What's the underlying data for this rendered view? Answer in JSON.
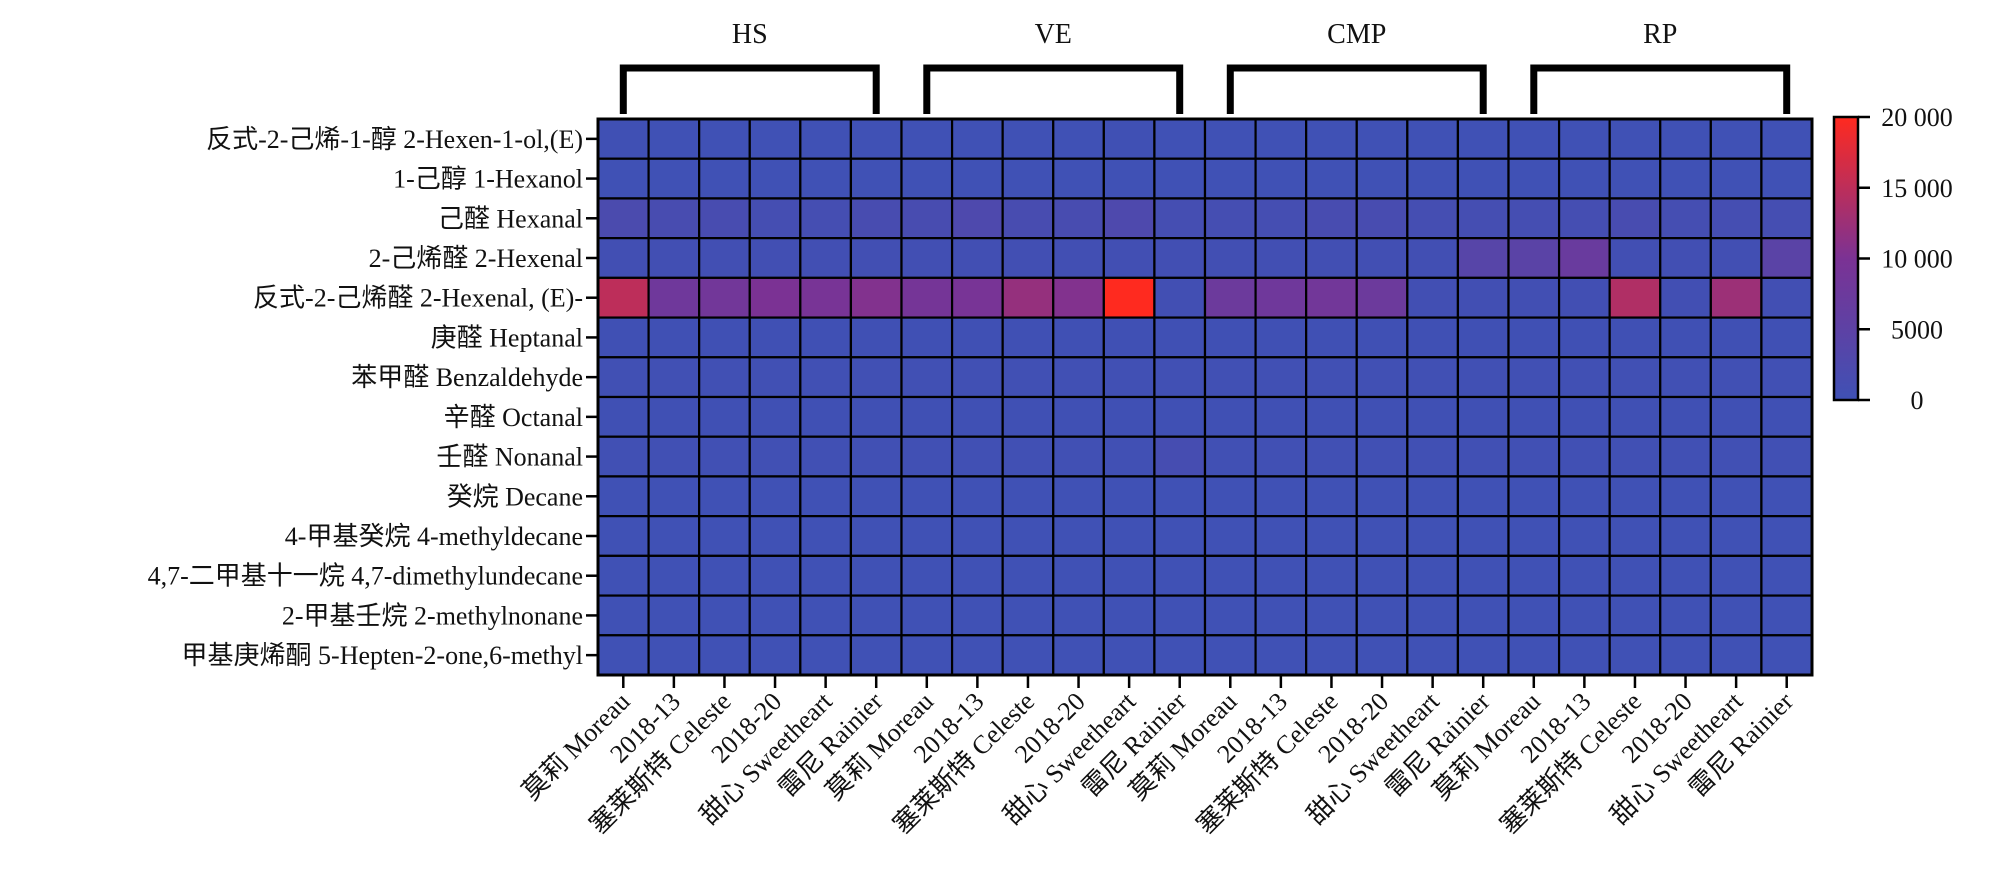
{
  "chart_data": {
    "type": "heatmap",
    "groups": [
      {
        "label": "HS",
        "start": 0,
        "end": 5
      },
      {
        "label": "VE",
        "start": 6,
        "end": 11
      },
      {
        "label": "CMP",
        "start": 12,
        "end": 17
      },
      {
        "label": "RP",
        "start": 18,
        "end": 23
      }
    ],
    "columns": [
      "莫莉 Moreau",
      "2018-13",
      "塞莱斯特 Celeste",
      "2018-20",
      "甜心 Sweetheart",
      "雷尼 Rainier",
      "莫莉 Moreau",
      "2018-13",
      "塞莱斯特 Celeste",
      "2018-20",
      "甜心 Sweetheart",
      "雷尼 Rainier",
      "莫莉 Moreau",
      "2018-13",
      "塞莱斯特 Celeste",
      "2018-20",
      "甜心 Sweetheart",
      "雷尼 Rainier",
      "莫莉 Moreau",
      "2018-13",
      "塞莱斯特 Celeste",
      "2018-20",
      "甜心 Sweetheart",
      "雷尼 Rainier"
    ],
    "rows": [
      "反式-2-己烯-1-醇 2-Hexen-1-ol,(E)",
      "1-己醇 1-Hexanol",
      "己醛 Hexanal",
      "2-己烯醛 2-Hexenal",
      "反式-2-己烯醛 2-Hexenal, (E)-",
      "庚醛 Heptanal",
      "苯甲醛 Benzaldehyde",
      "辛醛 Octanal",
      "壬醛 Nonanal",
      "癸烷 Decane",
      "4-甲基癸烷 4-methyldecane",
      "4,7-二甲基十一烷 4,7-dimethylundecane",
      "2-甲基壬烷 2-methylnonane",
      "甲基庚烯酮 5-Hepten-2-one,6-methyl"
    ],
    "values": [
      [
        200,
        150,
        100,
        150,
        100,
        100,
        100,
        100,
        150,
        150,
        200,
        100,
        100,
        100,
        100,
        100,
        100,
        100,
        100,
        100,
        100,
        100,
        100,
        100
      ],
      [
        100,
        100,
        100,
        100,
        100,
        100,
        100,
        100,
        100,
        100,
        100,
        100,
        100,
        100,
        100,
        100,
        100,
        100,
        100,
        100,
        100,
        100,
        100,
        100
      ],
      [
        2000,
        1500,
        1500,
        1000,
        1000,
        1500,
        1500,
        2500,
        1500,
        1500,
        2500,
        1000,
        1000,
        1000,
        1500,
        1500,
        1000,
        1000,
        1000,
        1000,
        1500,
        1000,
        1000,
        1000
      ],
      [
        500,
        500,
        500,
        500,
        500,
        500,
        500,
        500,
        500,
        500,
        500,
        500,
        500,
        500,
        500,
        500,
        500,
        4000,
        4500,
        7000,
        500,
        500,
        500,
        4500
      ],
      [
        15000,
        8000,
        8500,
        10000,
        9500,
        10500,
        9000,
        9500,
        12000,
        10500,
        20000,
        500,
        7500,
        8000,
        8500,
        7500,
        500,
        500,
        500,
        500,
        14000,
        500,
        12500,
        500
      ],
      [
        200,
        200,
        200,
        200,
        200,
        200,
        200,
        200,
        200,
        200,
        200,
        200,
        200,
        200,
        200,
        200,
        200,
        200,
        200,
        200,
        200,
        200,
        200,
        200
      ],
      [
        300,
        300,
        300,
        300,
        300,
        300,
        300,
        300,
        300,
        300,
        300,
        300,
        300,
        300,
        300,
        300,
        300,
        300,
        300,
        300,
        300,
        300,
        300,
        300
      ],
      [
        200,
        200,
        200,
        200,
        200,
        200,
        200,
        200,
        200,
        200,
        200,
        200,
        200,
        200,
        200,
        200,
        200,
        200,
        200,
        200,
        200,
        200,
        200,
        200
      ],
      [
        300,
        300,
        300,
        300,
        300,
        300,
        300,
        300,
        300,
        300,
        300,
        1200,
        300,
        300,
        300,
        300,
        300,
        300,
        300,
        300,
        300,
        300,
        300,
        300
      ],
      [
        100,
        100,
        100,
        100,
        100,
        100,
        100,
        100,
        100,
        100,
        100,
        100,
        100,
        100,
        100,
        100,
        100,
        100,
        100,
        100,
        100,
        100,
        100,
        100
      ],
      [
        100,
        100,
        100,
        100,
        100,
        100,
        100,
        100,
        100,
        100,
        100,
        100,
        100,
        100,
        100,
        100,
        100,
        100,
        100,
        100,
        100,
        100,
        100,
        100
      ],
      [
        100,
        100,
        100,
        100,
        100,
        100,
        100,
        100,
        100,
        100,
        100,
        100,
        100,
        100,
        100,
        100,
        100,
        100,
        100,
        100,
        100,
        100,
        100,
        100
      ],
      [
        100,
        100,
        100,
        100,
        100,
        100,
        100,
        100,
        100,
        100,
        100,
        100,
        100,
        100,
        100,
        100,
        100,
        100,
        100,
        100,
        100,
        100,
        100,
        100
      ],
      [
        100,
        100,
        100,
        100,
        100,
        100,
        100,
        100,
        100,
        100,
        100,
        100,
        100,
        100,
        100,
        100,
        100,
        100,
        100,
        100,
        100,
        100,
        100,
        100
      ]
    ],
    "colorscale": {
      "min": 0,
      "max": 20000,
      "low_color": "#3f51b5",
      "mid_color": "#7b3294",
      "high_color": "#ff2a1f",
      "ticks": [
        0,
        5000,
        10000,
        15000,
        20000
      ],
      "tick_labels": [
        "0",
        "5000",
        "10 000",
        "15 000",
        "20 000"
      ]
    },
    "title": "",
    "xlabel": "",
    "ylabel": ""
  }
}
